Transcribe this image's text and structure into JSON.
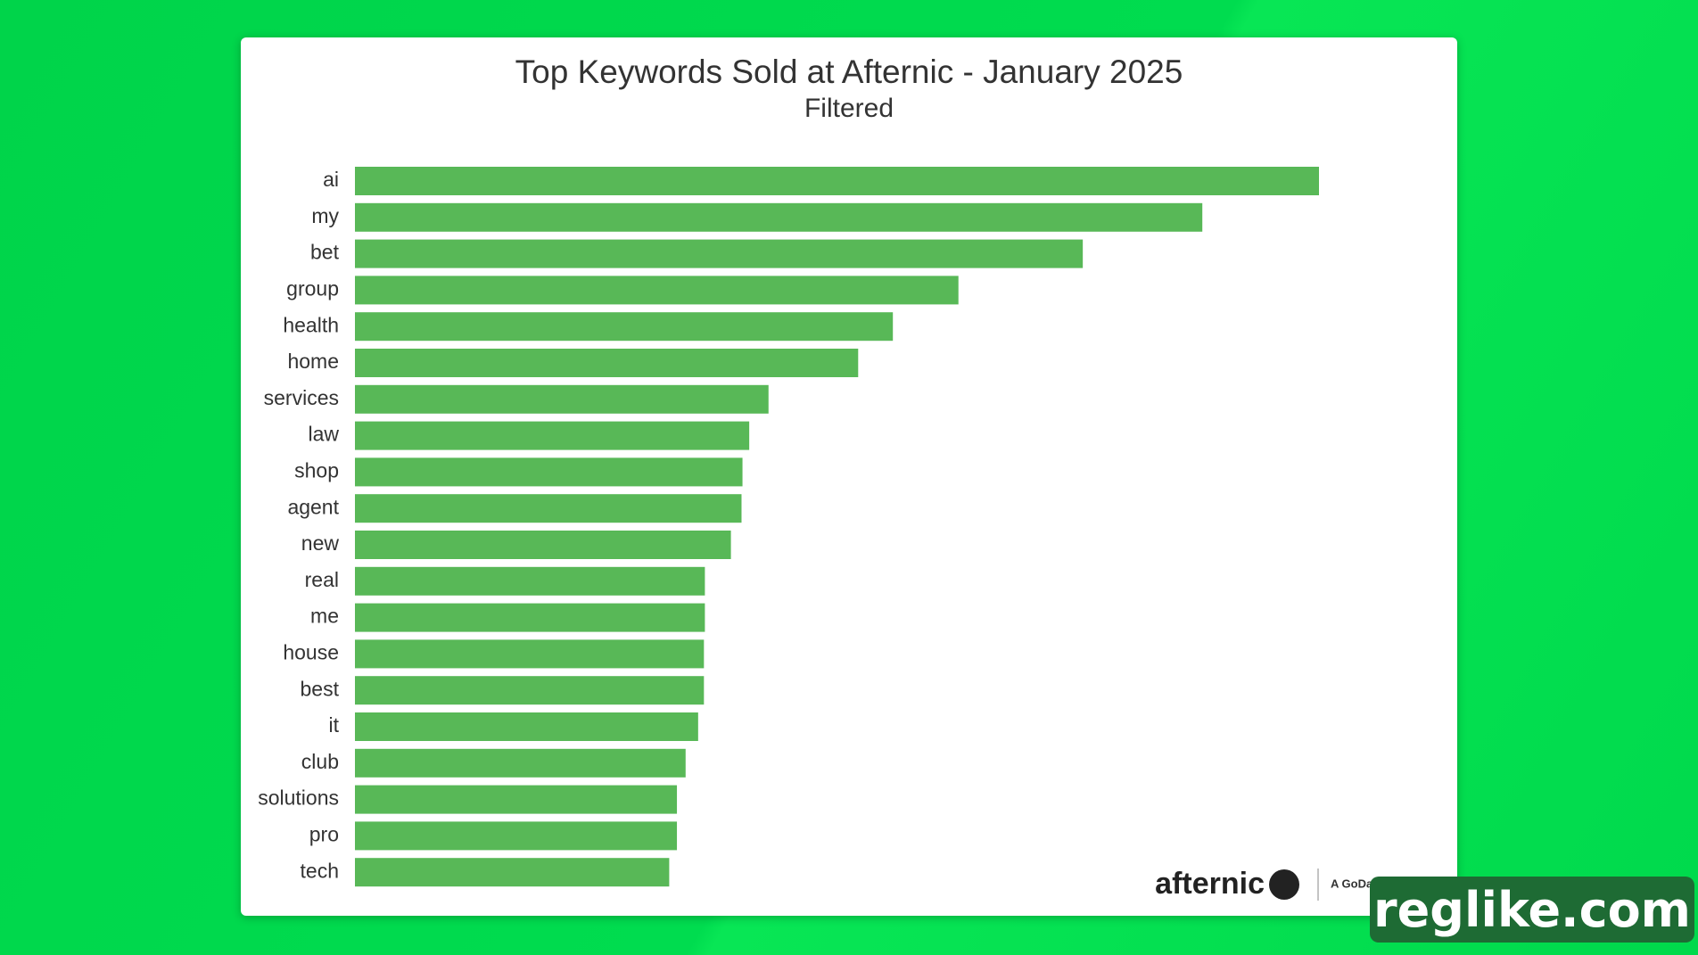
{
  "chart_data": {
    "type": "bar",
    "orientation": "horizontal",
    "title": "Top Keywords Sold at Afternic - January 2025",
    "subtitle": "Filtered",
    "categories": [
      "ai",
      "my",
      "bet",
      "group",
      "health",
      "home",
      "services",
      "law",
      "shop",
      "agent",
      "new",
      "real",
      "me",
      "house",
      "best",
      "it",
      "club",
      "solutions",
      "pro",
      "tech"
    ],
    "values": [
      100,
      87.9,
      75.5,
      62.6,
      55.8,
      52.2,
      42.9,
      40.9,
      40.2,
      40.1,
      39.0,
      36.3,
      36.3,
      36.2,
      36.2,
      35.6,
      34.3,
      33.4,
      33.4,
      32.6
    ],
    "color": "#58b857"
  },
  "branding": {
    "logo": "afternic",
    "brand": "A GoDaddy Brand"
  },
  "watermark": "reglike.com"
}
